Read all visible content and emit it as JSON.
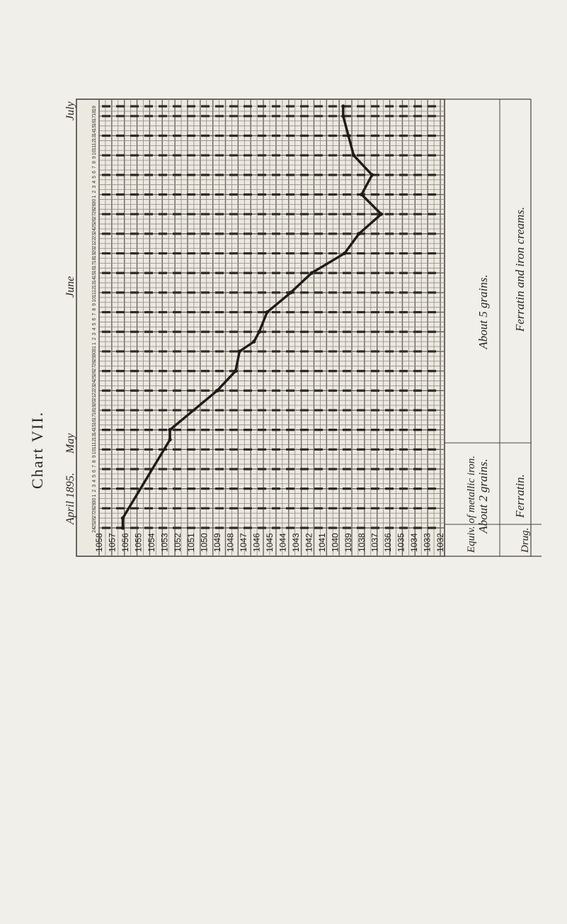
{
  "chart_data": {
    "type": "line",
    "title": "Chart VII.",
    "orientation": "rotated 90° counter-clockwise; time runs upward, specific gravity runs right-to-left",
    "month_labels": [
      "April 1895.",
      "May",
      "June",
      "July"
    ],
    "date_ticks": [
      "24",
      "25",
      "26",
      "27",
      "28",
      "29",
      "30",
      "1",
      "2",
      "3",
      "4",
      "5",
      "6",
      "7",
      "8",
      "9",
      "10",
      "11",
      "12",
      "13",
      "14",
      "15",
      "16",
      "17",
      "18",
      "19",
      "20",
      "21",
      "22",
      "23",
      "24",
      "25",
      "26",
      "27",
      "28",
      "29",
      "30",
      "31",
      "1",
      "2",
      "3",
      "4",
      "5",
      "6",
      "7",
      "8",
      "9",
      "10",
      "11",
      "12",
      "13",
      "14",
      "15",
      "16",
      "17",
      "18",
      "19",
      "20",
      "21",
      "22",
      "23",
      "24",
      "25",
      "26",
      "27",
      "28",
      "29",
      "30",
      "1",
      "2",
      "3",
      "4",
      "5",
      "6",
      "7",
      "8",
      "9",
      "10",
      "11",
      "12",
      "13",
      "14",
      "15",
      "16",
      "17",
      "18",
      "19",
      "20"
    ],
    "y_axis": {
      "label": "",
      "ticks": [
        1058,
        1057,
        1056,
        1055,
        1054,
        1053,
        1052,
        1051,
        1050,
        1049,
        1048,
        1047,
        1046,
        1045,
        1044,
        1043,
        1042,
        1041,
        1040,
        1039,
        1038,
        1037,
        1036,
        1035,
        1034,
        1033,
        1032
      ],
      "tick_labels": [
        "1058",
        "1057",
        "1056",
        "1055",
        "1054",
        "1053",
        "1052",
        "1051",
        "1050",
        "1049",
        "1048",
        "1047",
        "1046",
        "1045",
        "1044",
        "1043",
        "1042",
        "1041",
        "1040",
        "1039",
        "1038",
        "1037",
        "1036",
        "1035",
        "1034",
        "1033",
        "1032"
      ],
      "range": [
        1032,
        1058
      ]
    },
    "series": [
      {
        "x": [
          0,
          2,
          18,
          20,
          28,
          32,
          36,
          38,
          40,
          44,
          48,
          52,
          56,
          60,
          64,
          68,
          72,
          76,
          80,
          84,
          86
        ],
        "values": [
          1056.2,
          1056.2,
          1052.6,
          1052.6,
          1049.0,
          1047.6,
          1047.3,
          1046.2,
          1045.8,
          1045.2,
          1043.4,
          1041.8,
          1039.3,
          1038.2,
          1036.5,
          1038.0,
          1037.2,
          1038.6,
          1039.0,
          1039.4,
          1039.4
        ]
      }
    ],
    "dashed_reference_rows": [
      0,
      4,
      8,
      12,
      16,
      20,
      24,
      28,
      32,
      36,
      40,
      44,
      48,
      52,
      56,
      60,
      64,
      68,
      72,
      76,
      80,
      84,
      86
    ],
    "periods": [
      {
        "label": "Equiv. of metallic iron.",
        "drug": "Drug."
      },
      {
        "label": "About 2 grains.",
        "drug": "Ferratin."
      },
      {
        "label": "About 5 grains.",
        "drug": "Ferratin and iron creams."
      }
    ],
    "header_labels": [
      "Equiv. of metallic iron.",
      "Drug."
    ],
    "grid": true
  }
}
